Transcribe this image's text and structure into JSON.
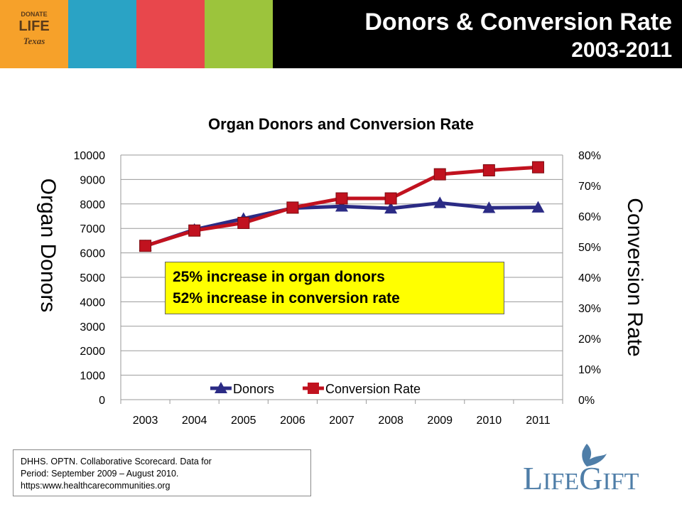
{
  "header": {
    "title_line1": "Donors & Conversion Rate",
    "title_line2": "2003-2011",
    "stripe_colors": [
      "#f6a12a",
      "#2aa3c5",
      "#e8474c",
      "#9cc43c"
    ],
    "logo": {
      "line1": "DONATE",
      "line2": "LIFE",
      "line3": "Texas"
    }
  },
  "chart_data": {
    "type": "line",
    "title": "Organ Donors and Conversion Rate",
    "x": [
      "2003",
      "2004",
      "2005",
      "2006",
      "2007",
      "2008",
      "2009",
      "2010",
      "2011"
    ],
    "ylabel": "Organ Donors",
    "y2label": "Conversion Rate",
    "ylim": [
      0,
      10000
    ],
    "y2lim": [
      0,
      0.8
    ],
    "yticks": [
      "0",
      "1000",
      "2000",
      "3000",
      "4000",
      "5000",
      "6000",
      "7000",
      "8000",
      "9000",
      "10000"
    ],
    "y2ticks": [
      "0%",
      "10%",
      "20%",
      "30%",
      "40%",
      "50%",
      "60%",
      "70%",
      "80%"
    ],
    "grid": true,
    "legend": "bottom-center",
    "series": [
      {
        "name": "Donors",
        "axis": "left",
        "color": "#2b2b85",
        "marker": "triangle",
        "values": [
          6280,
          6950,
          7400,
          7830,
          7900,
          7820,
          8040,
          7840,
          7860
        ]
      },
      {
        "name": "Conversion Rate",
        "axis": "right",
        "color": "#c1121f",
        "marker": "square",
        "values": [
          0.503,
          0.553,
          0.578,
          0.628,
          0.658,
          0.658,
          0.737,
          0.75,
          0.76
        ]
      }
    ]
  },
  "callout": {
    "line1": "25% increase in organ donors",
    "line2": "52% increase in conversion rate"
  },
  "source": {
    "line1": "DHHS.  OPTN.  Collaborative Scorecard.  Data for",
    "line2": "Period:  September 2009 – August 2010.",
    "line3": "https:www.healthcarecommunities.org"
  },
  "brand": {
    "name": "LifeGift",
    "color": "#4f7ea8"
  }
}
